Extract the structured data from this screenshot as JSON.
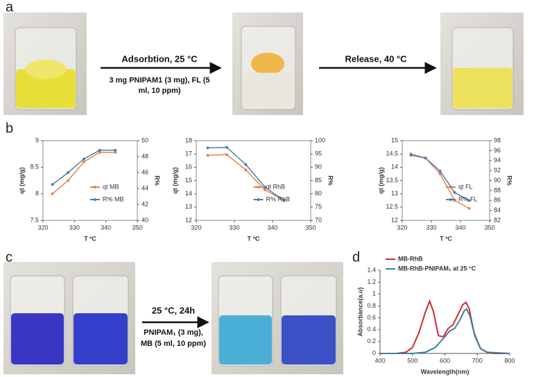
{
  "panels": {
    "a": "a",
    "b": "b",
    "c": "c",
    "d": "d"
  },
  "arrows": {
    "adsorption": {
      "title": "Adsorbtion, 25 °C",
      "lines": [
        "3 mg PNIPAM1 (3 mg), FL (5",
        "ml, 10 ppm)"
      ]
    },
    "release": {
      "title": "Release, 40 °C"
    },
    "dye": {
      "title": "25 °C, 24h",
      "lines": [
        "PNIPAM₁ (3 mg),",
        "MB (5 ml, 10 ppm)"
      ]
    }
  },
  "chart_data": [
    {
      "type": "line",
      "xlabel": "T ºC",
      "ylabel": "qt (mg/g)",
      "y2label": "R%",
      "markers": true,
      "frame": true,
      "legend": "lower right",
      "x": [
        323,
        328,
        333,
        338,
        343
      ],
      "xlim": [
        320,
        350
      ],
      "xticks": [
        320,
        330,
        340,
        350
      ],
      "ylim": [
        7.5,
        9
      ],
      "yticks": [
        7.5,
        8,
        8.5,
        9
      ],
      "y2lim": [
        40,
        50
      ],
      "y2ticks": [
        40,
        42,
        44,
        46,
        48,
        50
      ],
      "series": [
        {
          "name": "qt MB",
          "color": "#e8834a",
          "values": [
            8.0,
            8.25,
            8.6,
            8.78,
            8.78
          ]
        },
        {
          "name": "R% MB",
          "color": "#4a7fa8",
          "axis": "y2",
          "values": [
            44.5,
            46,
            47.7,
            48.8,
            48.8
          ]
        }
      ]
    },
    {
      "type": "line",
      "xlabel": "T ºC",
      "ylabel": "qt (mg/g)",
      "y2label": "R%",
      "markers": true,
      "frame": true,
      "legend": "lower right",
      "x": [
        323,
        328,
        333,
        338,
        343
      ],
      "xlim": [
        320,
        350
      ],
      "xticks": [
        320,
        330,
        340,
        350
      ],
      "ylim": [
        12,
        18
      ],
      "yticks": [
        12,
        13,
        14,
        15,
        16,
        17,
        18
      ],
      "y2lim": [
        70,
        100
      ],
      "y2ticks": [
        70,
        75,
        80,
        85,
        90,
        95,
        100
      ],
      "series": [
        {
          "name": "qt RhB",
          "color": "#e8834a",
          "values": [
            16.9,
            16.95,
            15.8,
            14.3,
            13.5
          ]
        },
        {
          "name": "R% RhB",
          "color": "#4a7fa8",
          "axis": "y2",
          "values": [
            97.3,
            97.5,
            91,
            82.5,
            77.5
          ]
        }
      ]
    },
    {
      "type": "line",
      "xlabel": "T ºC",
      "ylabel": "qt (mg/g)",
      "y2label": "R%",
      "markers": true,
      "frame": true,
      "legend": "lower right",
      "x": [
        323,
        328,
        333,
        338,
        343
      ],
      "xlim": [
        320,
        350
      ],
      "xticks": [
        320,
        330,
        340,
        350
      ],
      "ylim": [
        12,
        15
      ],
      "yticks": [
        12,
        12.5,
        13,
        13.5,
        14,
        14.5,
        15
      ],
      "y2lim": [
        82,
        98
      ],
      "y2ticks": [
        82,
        84,
        86,
        88,
        90,
        92,
        94,
        96,
        98
      ],
      "series": [
        {
          "name": "qt FL",
          "color": "#e8834a",
          "values": [
            14.5,
            14.35,
            13.75,
            12.75,
            12.45
          ]
        },
        {
          "name": "R% FL",
          "color": "#4a7fa8",
          "axis": "y2",
          "values": [
            95.1,
            94.5,
            91.9,
            87.6,
            86.0
          ]
        }
      ]
    },
    {
      "type": "line",
      "xlabel": "Wavelength(nm)",
      "ylabel": "Absorbance(a.u)",
      "markers": false,
      "frame": false,
      "legend": "upper left",
      "xlim": [
        400,
        800
      ],
      "xticks": [
        400,
        500,
        600,
        700,
        800
      ],
      "ylim": [
        0,
        1.4
      ],
      "yticks": [
        0,
        0.2,
        0.4,
        0.6,
        0.8,
        1,
        1.2,
        1.4
      ],
      "series": [
        {
          "name": "MB-RhB",
          "color": "#d42a2a",
          "x": [
            400,
            450,
            480,
            500,
            520,
            540,
            553,
            565,
            580,
            595,
            610,
            625,
            640,
            655,
            665,
            675,
            690,
            710,
            730,
            750,
            800
          ],
          "values": [
            0,
            0,
            0.02,
            0.1,
            0.35,
            0.7,
            0.88,
            0.7,
            0.3,
            0.28,
            0.42,
            0.48,
            0.65,
            0.82,
            0.86,
            0.75,
            0.35,
            0.08,
            0.02,
            0,
            0
          ]
        },
        {
          "name": "MB-RhB-PNIPAM₁ at 25 °C",
          "color": "#3f7fa0",
          "x": [
            400,
            500,
            540,
            570,
            595,
            615,
            630,
            645,
            660,
            667,
            678,
            692,
            710,
            730,
            800
          ],
          "values": [
            0,
            0,
            0.02,
            0.1,
            0.25,
            0.38,
            0.42,
            0.55,
            0.72,
            0.75,
            0.62,
            0.3,
            0.08,
            0.02,
            0
          ]
        }
      ]
    }
  ]
}
